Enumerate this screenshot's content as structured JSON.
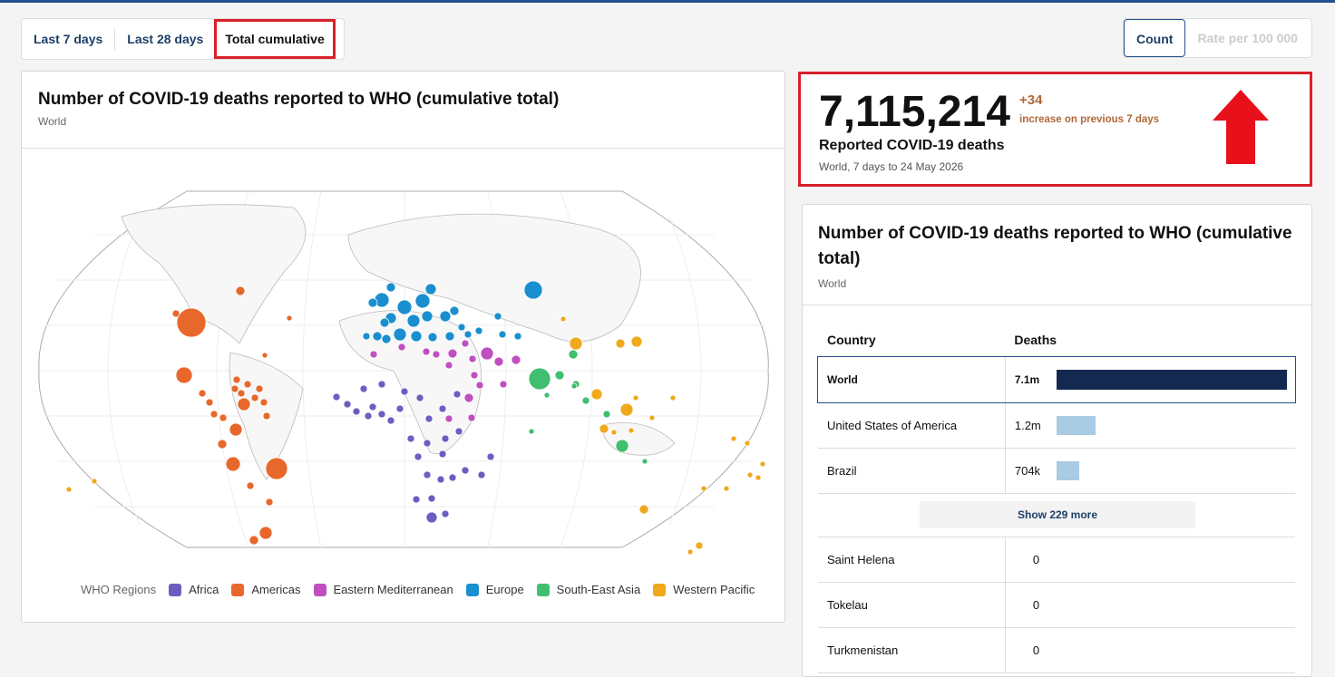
{
  "tabs": [
    "Last 7 days",
    "Last 28 days",
    "Total cumulative"
  ],
  "toggle": [
    "Count",
    "Rate per 100 000"
  ],
  "map_card": {
    "title": "Number of COVID-19 deaths reported to WHO (cumulative total)",
    "subtitle": "World",
    "legend_title": "WHO Regions",
    "regions": [
      {
        "name": "Africa",
        "color": "#6a5fc0"
      },
      {
        "name": "Americas",
        "color": "#e8672a"
      },
      {
        "name": "Eastern Mediterranean",
        "color": "#c04fbf"
      },
      {
        "name": "Europe",
        "color": "#1a8fcf"
      },
      {
        "name": "South-East Asia",
        "color": "#3fbf6f"
      },
      {
        "name": "Western Pacific",
        "color": "#f0a81c"
      }
    ]
  },
  "summary": {
    "value": "7,115,214",
    "change": "+34",
    "change_note": "increase on previous 7 days",
    "label": "Reported COVID-19 deaths",
    "period": "World, 7 days to 24 May 2026"
  },
  "table_card": {
    "title": "Number of COVID-19 deaths reported to WHO (cumulative total)",
    "subtitle": "World",
    "columns": [
      "Country",
      "Deaths"
    ],
    "show_more": "Show 229 more",
    "rows": [
      {
        "country": "World",
        "deaths": 7100000,
        "deaths_label": "7.1m"
      },
      {
        "country": "United States of America",
        "deaths": 1200000,
        "deaths_label": "1.2m"
      },
      {
        "country": "Brazil",
        "deaths": 704000,
        "deaths_label": "704k"
      },
      {
        "country": "Saint Helena",
        "deaths": 0
      },
      {
        "country": "Tokelau",
        "deaths": 0
      },
      {
        "country": "Turkmenistan",
        "deaths": 0
      }
    ]
  }
}
